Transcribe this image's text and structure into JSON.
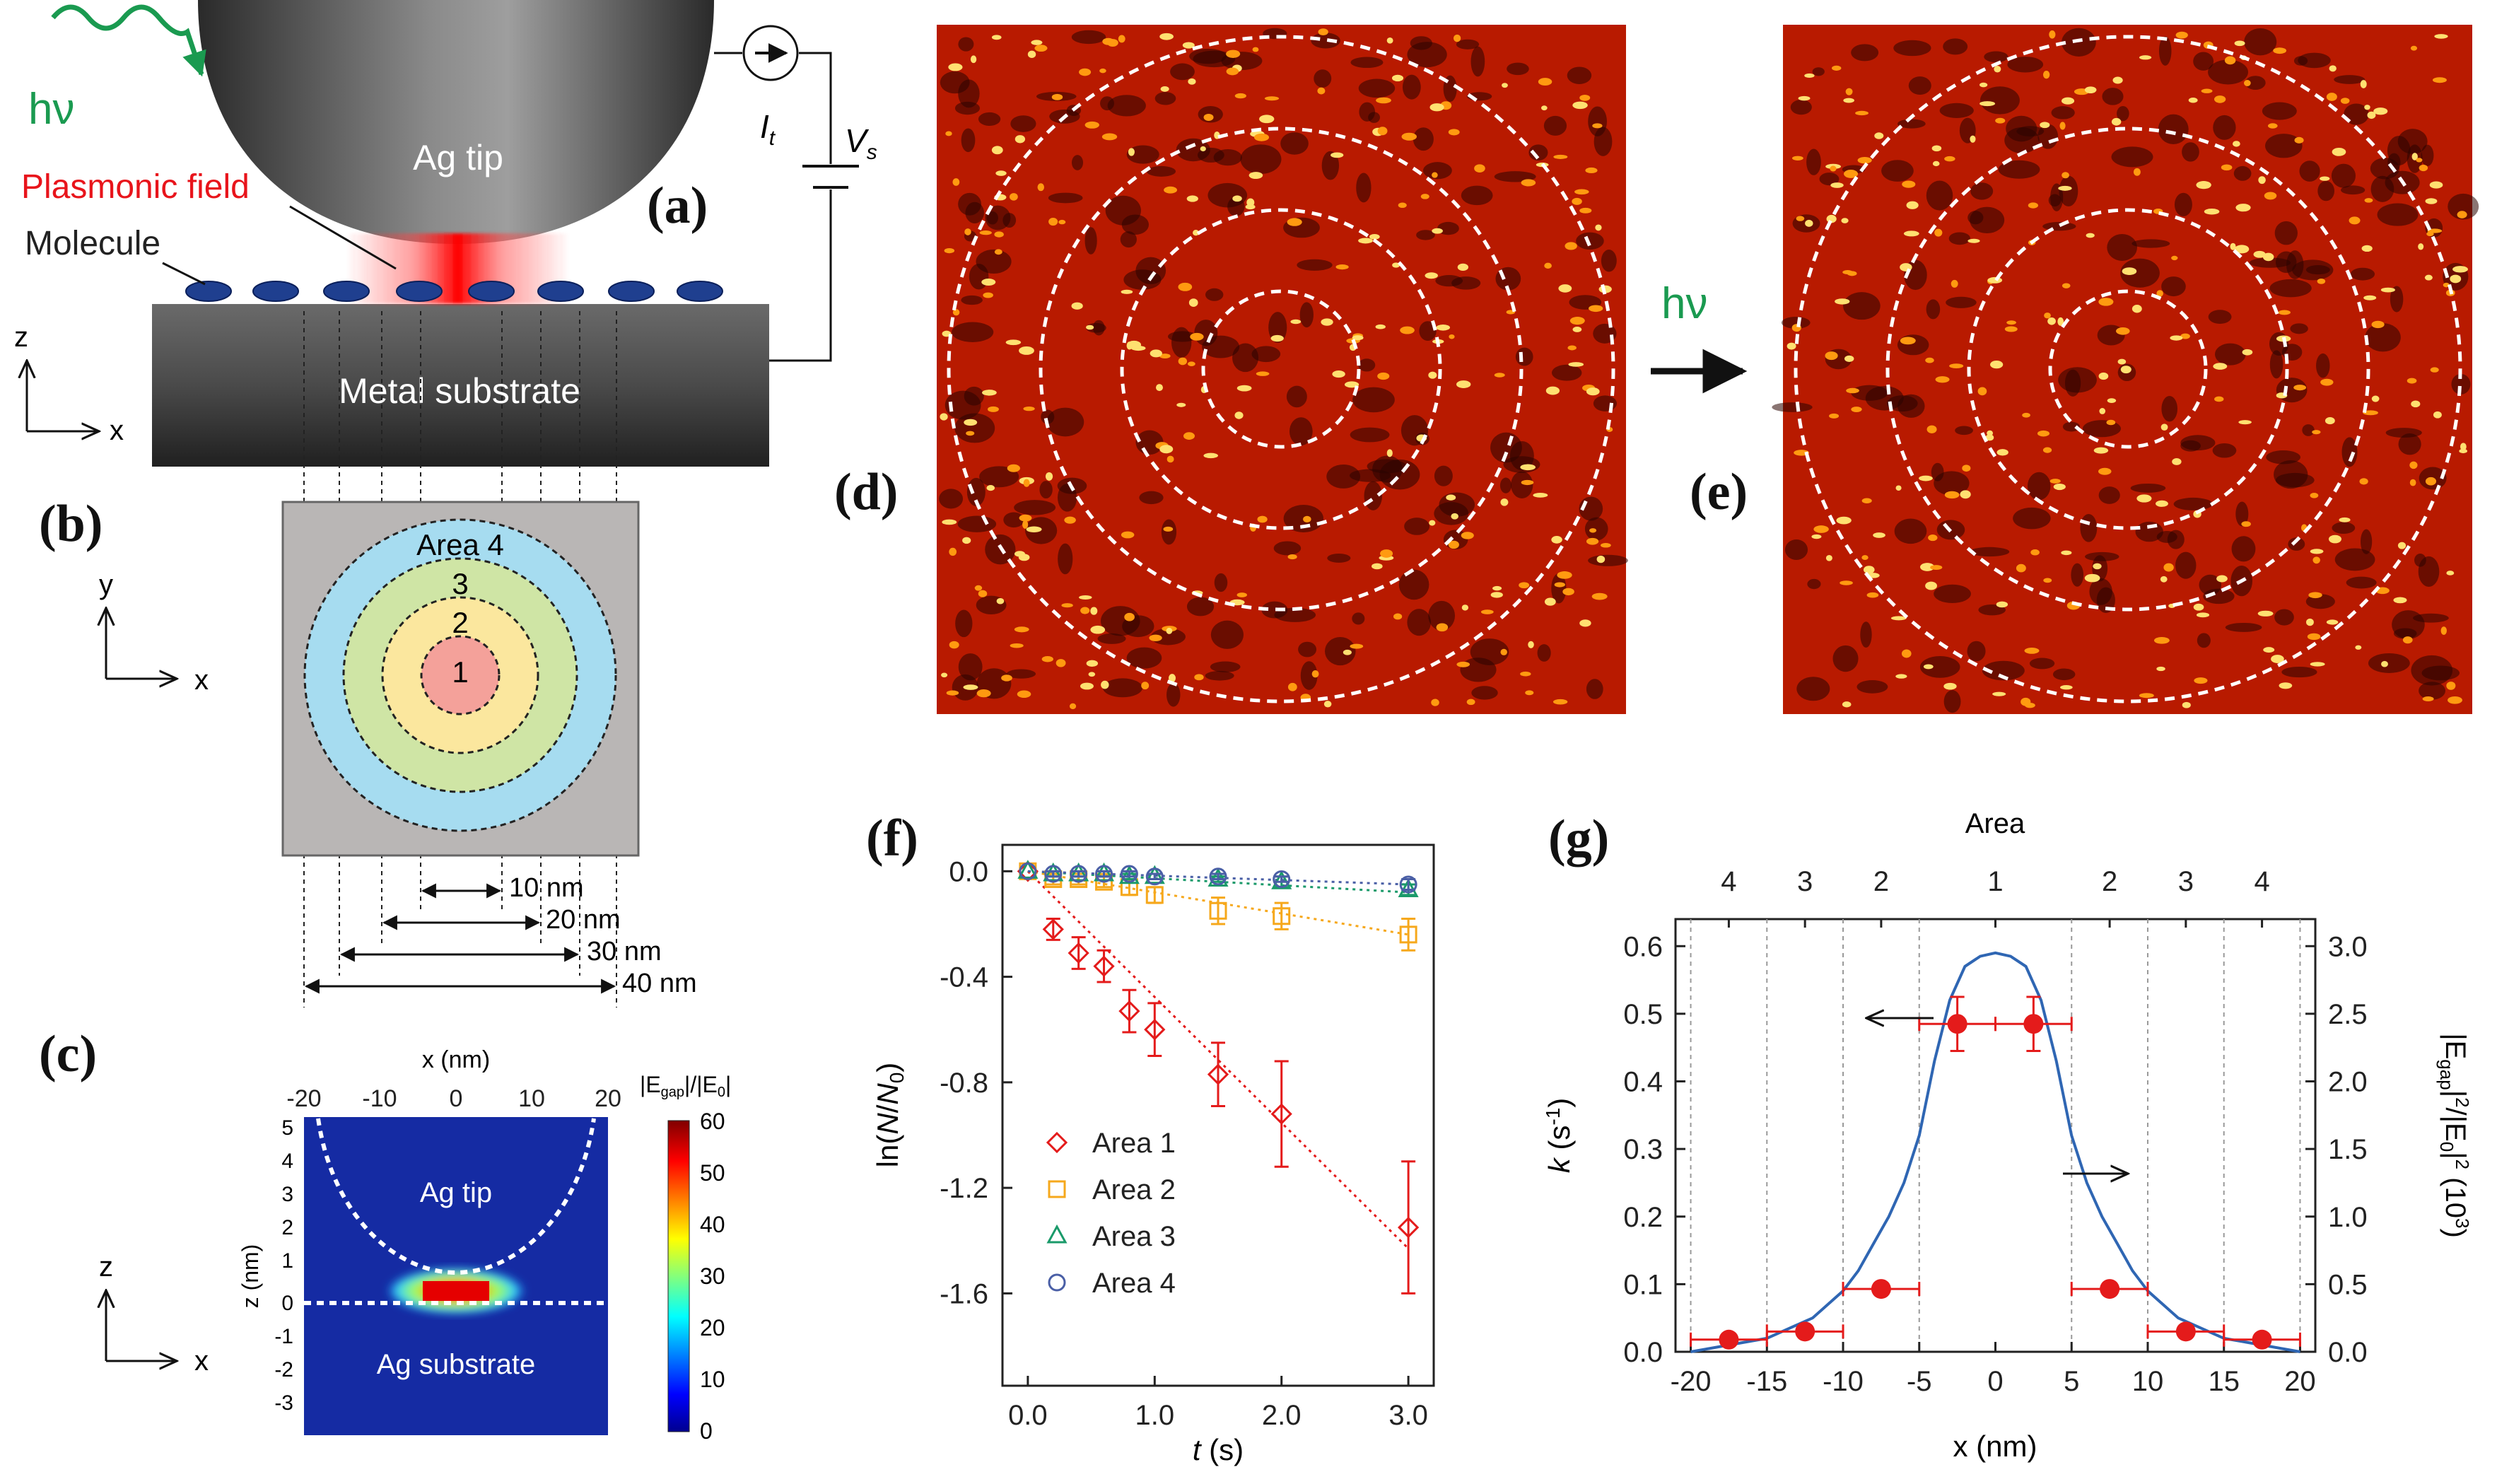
{
  "panel_labels": {
    "a": "(a)",
    "b": "(b)",
    "c": "(c)",
    "d": "(d)",
    "e": "(e)",
    "f": "(f)",
    "g": "(g)"
  },
  "panel_a": {
    "hv": "hν",
    "tip": "Ag tip",
    "plasmonic": "Plasmonic field",
    "molecule": "Molecule",
    "substrate": "Metal substrate",
    "current": "I",
    "current_sub": "t",
    "voltage": "V",
    "voltage_sub": "s",
    "axis_z": "z",
    "axis_x": "x",
    "colors": {
      "plasmonic": "#e8141b",
      "hv": "#1a9a50",
      "molecule": "#1f3f8f"
    }
  },
  "panel_b": {
    "areas": [
      "Area 4",
      "3",
      "2",
      "1"
    ],
    "dims": [
      "10 nm",
      "20 nm",
      "30 nm",
      "40 nm"
    ],
    "axis_y": "y",
    "axis_x": "x",
    "colors": [
      "#a6dcf0",
      "#cfe5a5",
      "#fbe79e",
      "#f4a19a"
    ]
  },
  "panel_c": {
    "xlabel": "x (nm)",
    "ylabel": "z (nm)",
    "xticks": [
      "-20",
      "-10",
      "0",
      "10",
      "20"
    ],
    "yticks": [
      "5",
      "4",
      "3",
      "2",
      "1",
      "0",
      "-1",
      "-2",
      "-3"
    ],
    "tip": "Ag tip",
    "substrate": "Ag substrate",
    "cbar_title": "|E",
    "cbar_title_sub": "gap",
    "cbar_title_mid": "|/|E",
    "cbar_title_sub2": "0",
    "cbar_title_end": "|",
    "cbar_ticks": [
      "60",
      "50",
      "40",
      "30",
      "20",
      "10",
      "0"
    ],
    "axis_z": "z",
    "axis_x": "x"
  },
  "panel_e": {
    "hv": "hν"
  },
  "chart_data": [
    {
      "type": "scatter",
      "panel": "f",
      "xlabel": "t (s)",
      "ylabel": "ln(N/N0)",
      "xlim": [
        -0.2,
        3.2
      ],
      "ylim": [
        -1.95,
        0.1
      ],
      "xticks": [
        "0.0",
        "1.0",
        "2.0",
        "3.0"
      ],
      "yticks": [
        "0.0",
        "-0.4",
        "-0.8",
        "-1.2",
        "-1.6"
      ],
      "legend_position": "bottom-left",
      "series": [
        {
          "name": "Area 1",
          "marker": "diamond",
          "color": "#e41b1b",
          "x": [
            0,
            0.2,
            0.4,
            0.6,
            0.8,
            1.0,
            1.5,
            2.0,
            3.0
          ],
          "y": [
            0.0,
            -0.22,
            -0.31,
            -0.36,
            -0.53,
            -0.6,
            -0.77,
            -0.92,
            -1.35
          ],
          "err": [
            0.0,
            0.04,
            0.06,
            0.06,
            0.08,
            0.1,
            0.12,
            0.2,
            0.25
          ],
          "fit": [
            [
              0,
              0
            ],
            [
              3.0,
              -1.43
            ]
          ]
        },
        {
          "name": "Area 2",
          "marker": "square",
          "color": "#f6a81c",
          "x": [
            0,
            0.2,
            0.4,
            0.6,
            0.8,
            1.0,
            1.5,
            2.0,
            3.0
          ],
          "y": [
            0.0,
            -0.03,
            -0.03,
            -0.04,
            -0.06,
            -0.09,
            -0.15,
            -0.17,
            -0.24
          ],
          "err": [
            0.0,
            0.02,
            0.02,
            0.02,
            0.03,
            0.03,
            0.05,
            0.05,
            0.06
          ],
          "fit": [
            [
              0,
              0
            ],
            [
              3.0,
              -0.24
            ]
          ]
        },
        {
          "name": "Area 3",
          "marker": "triangle",
          "color": "#1a9a6a",
          "x": [
            0,
            0.2,
            0.4,
            0.6,
            0.8,
            1.0,
            1.5,
            2.0,
            3.0
          ],
          "y": [
            0.0,
            -0.01,
            -0.01,
            -0.01,
            -0.02,
            -0.02,
            -0.03,
            -0.04,
            -0.07
          ],
          "err": [
            0.0,
            0.01,
            0.01,
            0.01,
            0.01,
            0.01,
            0.01,
            0.02,
            0.02
          ],
          "fit": [
            [
              0,
              0
            ],
            [
              3.0,
              -0.08
            ]
          ]
        },
        {
          "name": "Area 4",
          "marker": "circle",
          "color": "#4a5fa6",
          "x": [
            0,
            0.2,
            0.4,
            0.6,
            0.8,
            1.0,
            1.5,
            2.0,
            3.0
          ],
          "y": [
            0.0,
            -0.01,
            -0.01,
            -0.01,
            -0.01,
            -0.02,
            -0.02,
            -0.03,
            -0.05
          ],
          "err": [
            0.0,
            0.01,
            0.01,
            0.01,
            0.01,
            0.01,
            0.01,
            0.01,
            0.02
          ],
          "fit": [
            [
              0,
              0
            ],
            [
              3.0,
              -0.05
            ]
          ]
        }
      ]
    },
    {
      "type": "scatter",
      "panel": "g",
      "title": "Area",
      "top_labels": [
        "4",
        "3",
        "2",
        "1",
        "2",
        "3",
        "4"
      ],
      "top_label_x": [
        -17.5,
        -12.5,
        -7.5,
        0,
        7.5,
        12.5,
        17.5
      ],
      "xlabel": "x (nm)",
      "ylabel": "k (s-1)",
      "ylabel_right": "|Egap|2/|E0|2 (103)",
      "xlim": [
        -21,
        21
      ],
      "ylim": [
        0,
        0.64
      ],
      "xticks": [
        "-20",
        "-15",
        "-10",
        "-5",
        "0",
        "5",
        "10",
        "15",
        "20"
      ],
      "yticks": [
        "0.0",
        "0.1",
        "0.2",
        "0.3",
        "0.4",
        "0.5",
        "0.6"
      ],
      "yticks_right": [
        "0.0",
        "0.5",
        "1.0",
        "1.5",
        "2.0",
        "2.5",
        "3.0"
      ],
      "ylim_right": [
        0,
        3.2
      ],
      "dashed_x": [
        -20,
        -15,
        -10,
        -5,
        5,
        10,
        15,
        20
      ],
      "points": {
        "x": [
          -17.5,
          -12.5,
          -7.5,
          -2.5,
          2.5,
          7.5,
          12.5,
          17.5
        ],
        "y": [
          0.018,
          0.03,
          0.093,
          0.485,
          0.485,
          0.093,
          0.03,
          0.018
        ],
        "xerr": [
          2.5,
          2.5,
          2.5,
          2.5,
          2.5,
          2.5,
          2.5,
          2.5
        ],
        "yerr": [
          0.0,
          0.0,
          0.0,
          0.04,
          0.04,
          0.0,
          0.0,
          0.0
        ],
        "color": "#e41b1b"
      },
      "curve": {
        "name": "|Egap|2/|E0|2",
        "color": "#2f66b3",
        "x": [
          -20,
          -15,
          -12,
          -10,
          -9,
          -8,
          -7,
          -6,
          -5,
          -4,
          -3,
          -2,
          -1,
          0,
          1,
          2,
          3,
          4,
          5,
          6,
          7,
          8,
          9,
          10,
          12,
          15,
          20
        ],
        "y": [
          0.0,
          0.02,
          0.05,
          0.09,
          0.12,
          0.16,
          0.2,
          0.25,
          0.32,
          0.43,
          0.52,
          0.57,
          0.585,
          0.59,
          0.585,
          0.57,
          0.52,
          0.43,
          0.32,
          0.25,
          0.2,
          0.16,
          0.12,
          0.09,
          0.05,
          0.02,
          0.0
        ]
      }
    }
  ]
}
